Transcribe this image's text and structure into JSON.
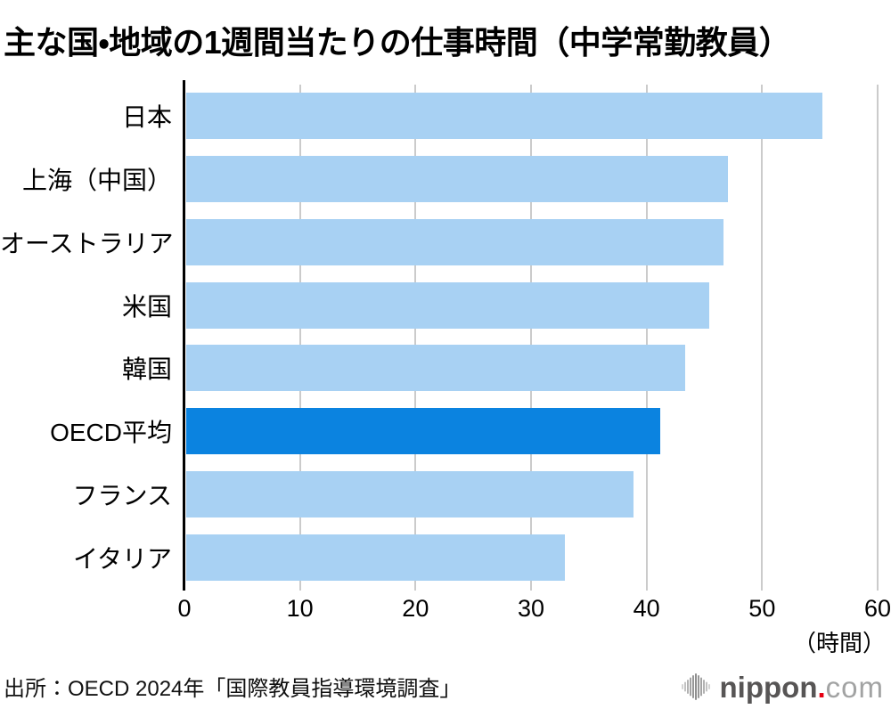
{
  "chart_data": {
    "type": "bar",
    "orientation": "horizontal",
    "title": "主な国・地域の1週間当たりの仕事時間（中学常勤教員）",
    "categories": [
      "日本",
      "上海（中国）",
      "オーストラリア",
      "米国",
      "韓国",
      "OECD平均",
      "フランス",
      "イタリア"
    ],
    "values": [
      55.1,
      46.9,
      46.5,
      45.3,
      43.2,
      41.0,
      38.7,
      32.8
    ],
    "highlight_category": "OECD平均",
    "highlight_index": 5,
    "xlim": [
      0,
      60
    ],
    "xticks": [
      0,
      10,
      20,
      30,
      40,
      50,
      60
    ],
    "unit_label": "（時間）",
    "grid": true,
    "legend": false,
    "colors": {
      "bar": "#A8D1F3",
      "highlight": "#0B83E0",
      "gridline": "#CBCBCB",
      "axis": "#000000"
    }
  },
  "source": "出所：OECD 2024年「国際教員指導環境調査」",
  "logo": {
    "name": "nippon",
    "dot": ".",
    "tld": "com",
    "name_color": "#575555",
    "dot_color": "#E60012",
    "tld_color": "#A2A3A3",
    "icon_color": "#ADADAD"
  }
}
